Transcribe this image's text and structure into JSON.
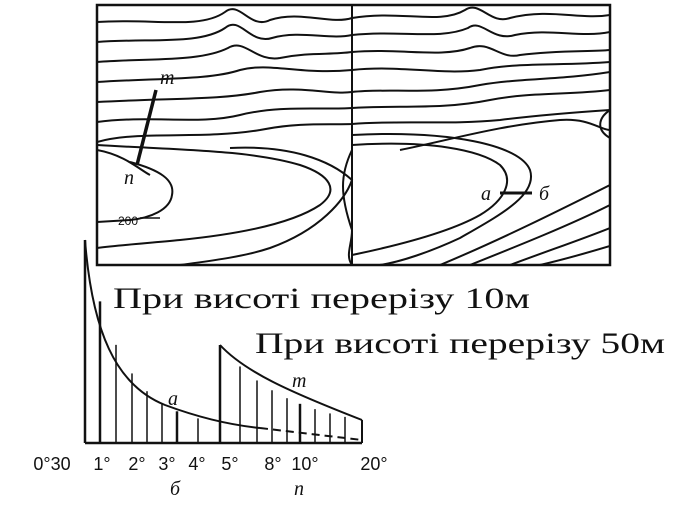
{
  "map": {
    "label_m": "m",
    "label_n": "n",
    "contour_label": "200",
    "label_a": "a",
    "label_b": "б"
  },
  "captions": [
    "При висоті перерізу 10м",
    "При висоті перерізу 50м"
  ],
  "scale": {
    "ticks": [
      "0°30",
      "1°",
      "2°",
      "3°",
      "4°",
      "5°",
      "8°",
      "10°",
      "20°"
    ],
    "curve_a": "a",
    "curve_m": "m",
    "section_b": "б",
    "section_n": "п"
  }
}
